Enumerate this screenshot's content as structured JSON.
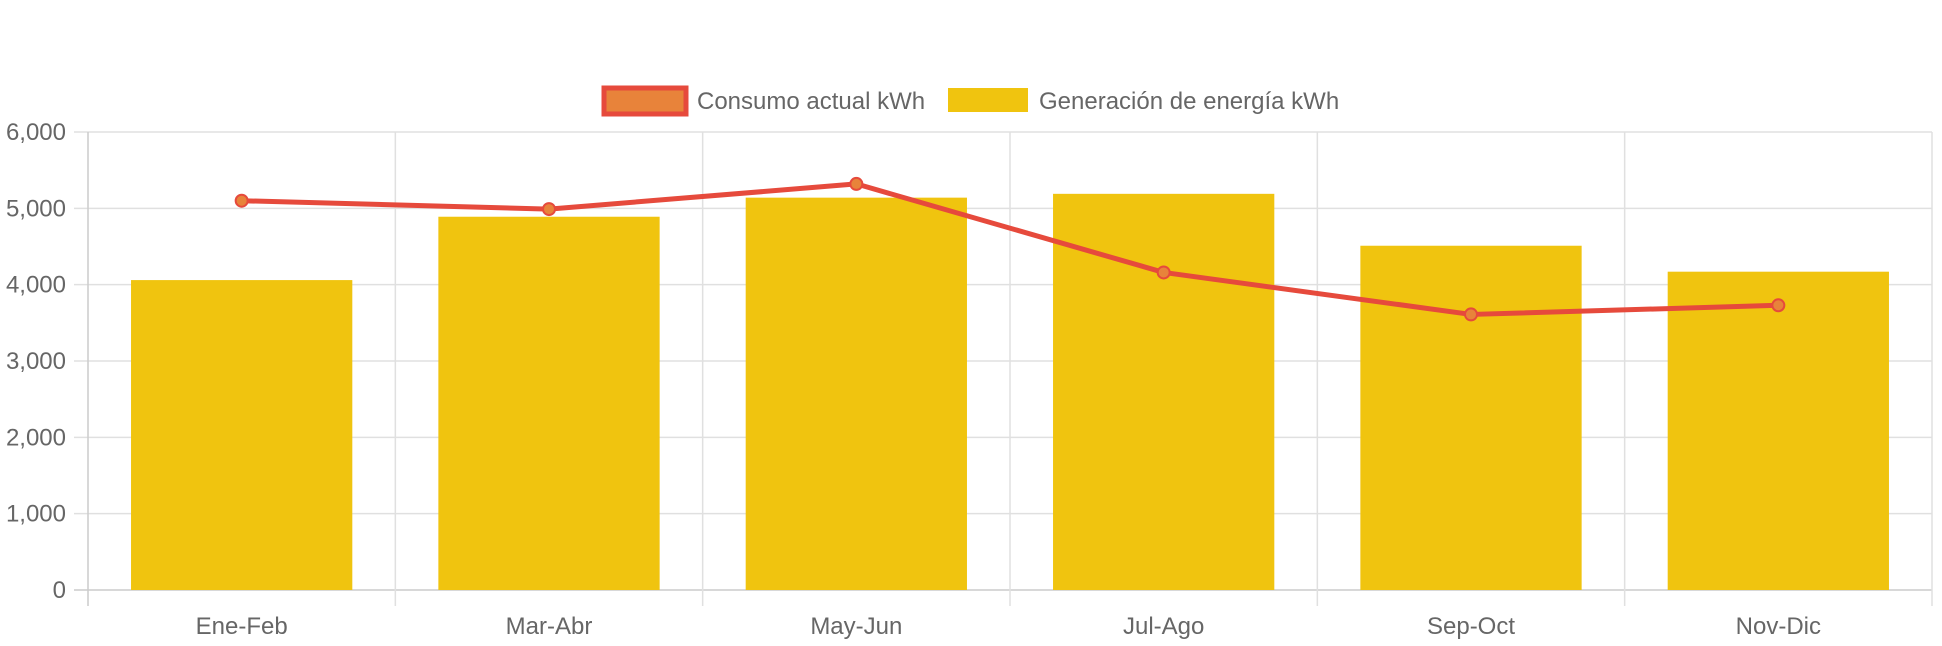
{
  "chart_data": {
    "type": "bar",
    "categories": [
      "Ene-Feb",
      "Mar-Abr",
      "May-Jun",
      "Jul-Ago",
      "Sep-Oct",
      "Nov-Dic"
    ],
    "series": [
      {
        "name": "Consumo actual kWh",
        "type": "line",
        "values": [
          5100,
          4990,
          5320,
          4160,
          3610,
          3730
        ],
        "color": "#e64a3c",
        "point_color": "#e8833a"
      },
      {
        "name": "Generación de energía kWh",
        "type": "bar",
        "values": [
          4060,
          4890,
          5140,
          5190,
          4510,
          4170
        ],
        "color": "#f0c40f"
      }
    ],
    "title": "",
    "xlabel": "",
    "ylabel": "",
    "ylim": [
      0,
      6000
    ],
    "yticks": [
      "0",
      "1,000",
      "2,000",
      "3,000",
      "4,000",
      "5,000",
      "6,000"
    ],
    "grid": true,
    "legend": "top-center",
    "grid_color": "#e0e0e0",
    "axis_color": "#cccccc"
  }
}
